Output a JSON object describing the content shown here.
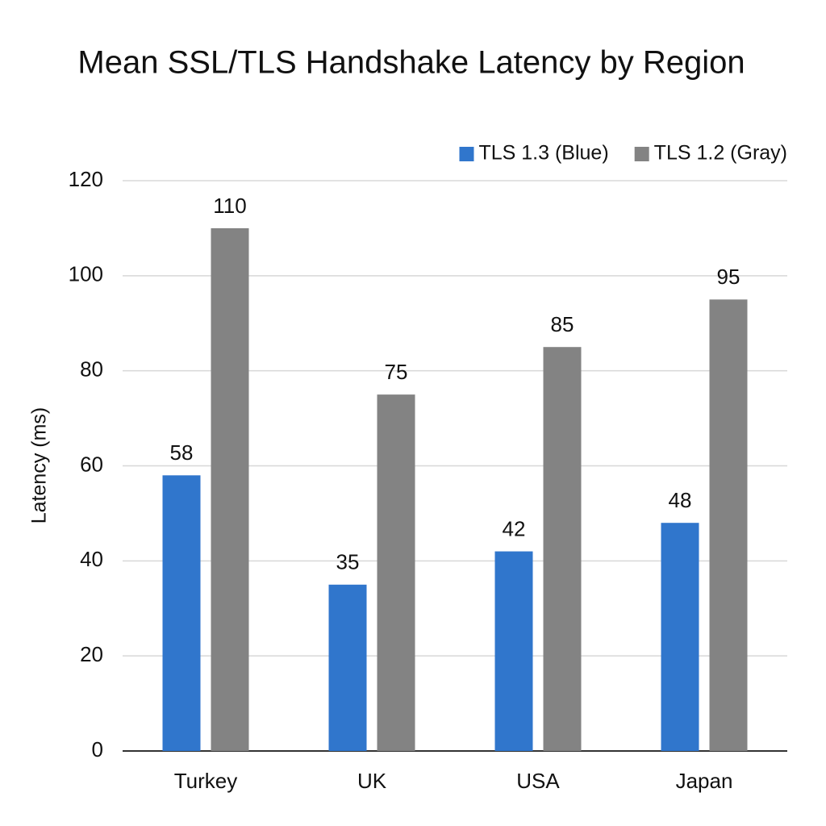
{
  "chart_data": {
    "type": "bar",
    "title": "Mean SSL/TLS Handshake Latency by Region",
    "y_label": "Latency (ms)",
    "categories": [
      "Turkey",
      "UK",
      "USA",
      "Japan"
    ],
    "series": [
      {
        "name": "TLS 1.3 (Blue)",
        "color": "#3076cc",
        "values": [
          58,
          35,
          42,
          48
        ]
      },
      {
        "name": "TLS 1.2 (Gray)",
        "color": "#838383",
        "values": [
          110,
          75,
          85,
          95
        ]
      }
    ],
    "ylim": [
      0,
      120
    ],
    "yticks": [
      0,
      20,
      40,
      60,
      80,
      100,
      120
    ],
    "grid": true,
    "legend": "top-right",
    "data_labels": true
  }
}
